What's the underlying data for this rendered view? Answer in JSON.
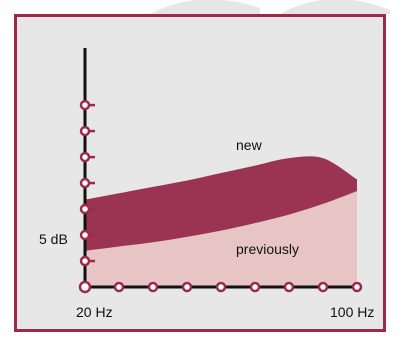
{
  "chart_data": {
    "type": "area",
    "x": [
      20,
      30,
      40,
      50,
      60,
      70,
      80,
      90,
      100
    ],
    "series": [
      {
        "name": "previously",
        "values": [
          1.7,
          1.9,
          2.1,
          2.35,
          2.65,
          3.0,
          3.4,
          3.9,
          4.5
        ],
        "color": "#e8c5c5"
      },
      {
        "name": "new",
        "values": [
          4.1,
          4.4,
          4.7,
          5.0,
          5.35,
          5.7,
          6.05,
          6.05,
          5.05
        ],
        "color": "#9b3452"
      }
    ],
    "xtick_labels": [
      "20 Hz",
      "100 Hz"
    ],
    "ytick_label": "5 dB",
    "ylim": [
      0,
      10
    ],
    "xlim": [
      20,
      100
    ],
    "axis_color": "#111111",
    "marker_color": "#9b2a4d",
    "panel_color": "#e7e7e7",
    "frame_color": "#9b2a4d"
  }
}
